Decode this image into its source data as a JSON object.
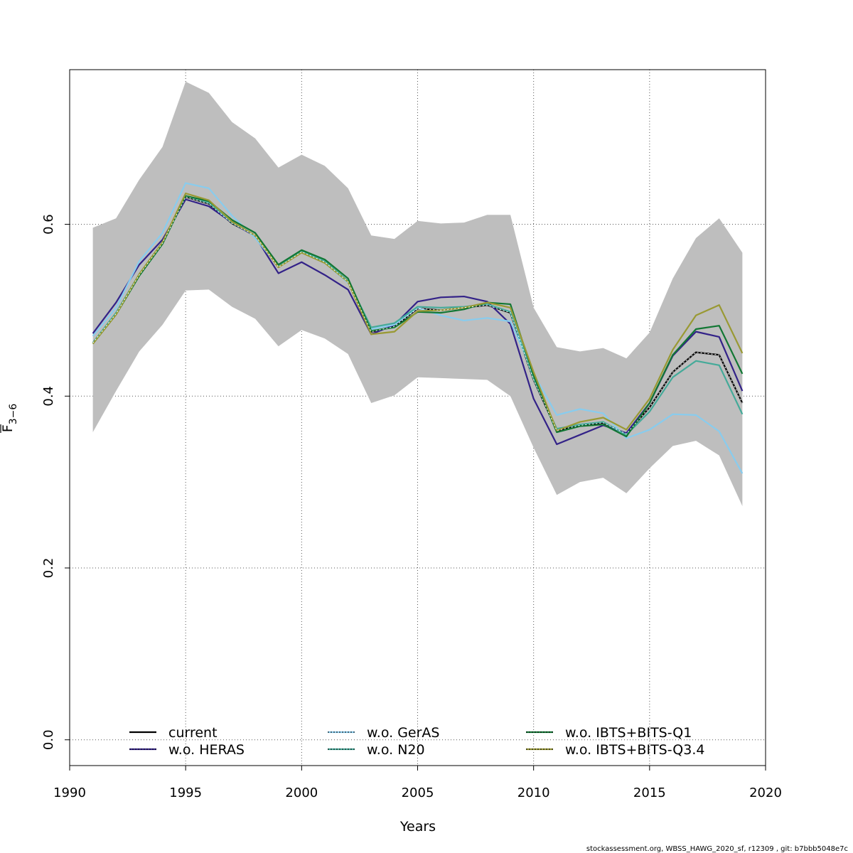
{
  "chart_data": {
    "type": "line",
    "xlabel": "Years",
    "ylabel_base": "F",
    "ylabel_sub": "3−6",
    "xlim": [
      1990,
      2020
    ],
    "ylim": [
      -0.03,
      0.78
    ],
    "x_ticks": [
      1990,
      1995,
      2000,
      2005,
      2010,
      2015,
      2020
    ],
    "y_ticks": [
      0.0,
      0.2,
      0.4,
      0.6
    ],
    "x_tick_labels": [
      "1990",
      "1995",
      "2000",
      "2005",
      "2010",
      "2015",
      "2020"
    ],
    "y_tick_labels": [
      "0.0",
      "0.2",
      "0.4",
      "0.6"
    ],
    "grid": true,
    "legend_position": "bottom",
    "x": [
      1991,
      1992,
      1993,
      1994,
      1995,
      1996,
      1997,
      1998,
      1999,
      2000,
      2001,
      2002,
      2003,
      2004,
      2005,
      2006,
      2007,
      2008,
      2009,
      2010,
      2011,
      2012,
      2013,
      2014,
      2015,
      2016,
      2017,
      2018,
      2019
    ],
    "confidence_band": {
      "color": "#bebebe",
      "upper": [
        0.596,
        0.607,
        0.652,
        0.69,
        0.766,
        0.753,
        0.719,
        0.7,
        0.666,
        0.681,
        0.668,
        0.642,
        0.587,
        0.583,
        0.604,
        0.601,
        0.602,
        0.611,
        0.611,
        0.503,
        0.457,
        0.452,
        0.456,
        0.444,
        0.474,
        0.537,
        0.584,
        0.607,
        0.567
      ],
      "lower": [
        0.358,
        0.406,
        0.452,
        0.483,
        0.523,
        0.524,
        0.504,
        0.49,
        0.458,
        0.477,
        0.467,
        0.449,
        0.392,
        0.401,
        0.422,
        0.421,
        0.42,
        0.419,
        0.4,
        0.34,
        0.285,
        0.3,
        0.305,
        0.287,
        0.316,
        0.342,
        0.348,
        0.331,
        0.272
      ]
    },
    "series": [
      {
        "name": "current",
        "color": "#000000",
        "dash": "solid",
        "values": [
          0.462,
          0.496,
          0.541,
          0.578,
          0.632,
          0.624,
          0.601,
          0.587,
          0.55,
          0.568,
          0.556,
          0.533,
          0.475,
          0.481,
          0.502,
          0.5,
          0.503,
          0.506,
          0.497,
          0.419,
          0.36,
          0.366,
          0.369,
          0.356,
          0.387,
          0.428,
          0.451,
          0.448,
          0.392
        ]
      },
      {
        "name": "w.o. HERAS",
        "color": "#332288",
        "dash": "solid",
        "values": [
          0.473,
          0.509,
          0.553,
          0.582,
          0.629,
          0.621,
          0.602,
          0.586,
          0.543,
          0.556,
          0.541,
          0.524,
          0.472,
          0.483,
          0.51,
          0.515,
          0.516,
          0.51,
          0.484,
          0.397,
          0.344,
          0.355,
          0.366,
          0.357,
          0.392,
          0.447,
          0.475,
          0.469,
          0.406
        ]
      },
      {
        "name": "w.o. GerAS",
        "color": "#88ccee",
        "dash": "solid",
        "values": [
          0.47,
          0.503,
          0.557,
          0.59,
          0.648,
          0.642,
          0.61,
          0.584,
          0.551,
          0.567,
          0.555,
          0.532,
          0.478,
          0.483,
          0.503,
          0.494,
          0.488,
          0.491,
          0.487,
          0.426,
          0.378,
          0.385,
          0.38,
          0.351,
          0.361,
          0.379,
          0.378,
          0.359,
          0.31
        ]
      },
      {
        "name": "w.o. N20",
        "color": "#44aa99",
        "dash": "solid",
        "values": [
          0.462,
          0.497,
          0.542,
          0.579,
          0.633,
          0.625,
          0.602,
          0.587,
          0.551,
          0.569,
          0.557,
          0.534,
          0.48,
          0.485,
          0.504,
          0.503,
          0.504,
          0.507,
          0.498,
          0.42,
          0.362,
          0.367,
          0.37,
          0.355,
          0.382,
          0.422,
          0.441,
          0.436,
          0.379
        ]
      },
      {
        "name": "w.o. IBTS+BITS-Q1",
        "color": "#117733",
        "dash": "solid",
        "values": [
          0.461,
          0.495,
          0.54,
          0.577,
          0.633,
          0.627,
          0.605,
          0.59,
          0.553,
          0.57,
          0.559,
          0.537,
          0.476,
          0.48,
          0.498,
          0.497,
          0.501,
          0.509,
          0.507,
          0.424,
          0.358,
          0.365,
          0.367,
          0.353,
          0.392,
          0.448,
          0.478,
          0.482,
          0.426
        ]
      },
      {
        "name": "w.o. IBTS+BITS-Q3.4",
        "color": "#999933",
        "dash": "solid",
        "values": [
          0.461,
          0.495,
          0.542,
          0.579,
          0.636,
          0.628,
          0.603,
          0.587,
          0.55,
          0.567,
          0.555,
          0.533,
          0.472,
          0.475,
          0.499,
          0.5,
          0.503,
          0.509,
          0.503,
          0.428,
          0.36,
          0.37,
          0.375,
          0.361,
          0.397,
          0.454,
          0.494,
          0.506,
          0.45
        ]
      }
    ],
    "legend": {
      "entries": [
        "current",
        "w.o. HERAS",
        "w.o. GerAS",
        "w.o. N20",
        "w.o. IBTS+BITS-Q1",
        "w.o. IBTS+BITS-Q3.4"
      ],
      "colors": [
        "#000000",
        "#332288",
        "#88ccee",
        "#44aa99",
        "#117733",
        "#999933"
      ]
    }
  },
  "footer": "stockassessment.org, WBSS_HAWG_2020_sf, r12309 , git: b7bbb5048e7c"
}
